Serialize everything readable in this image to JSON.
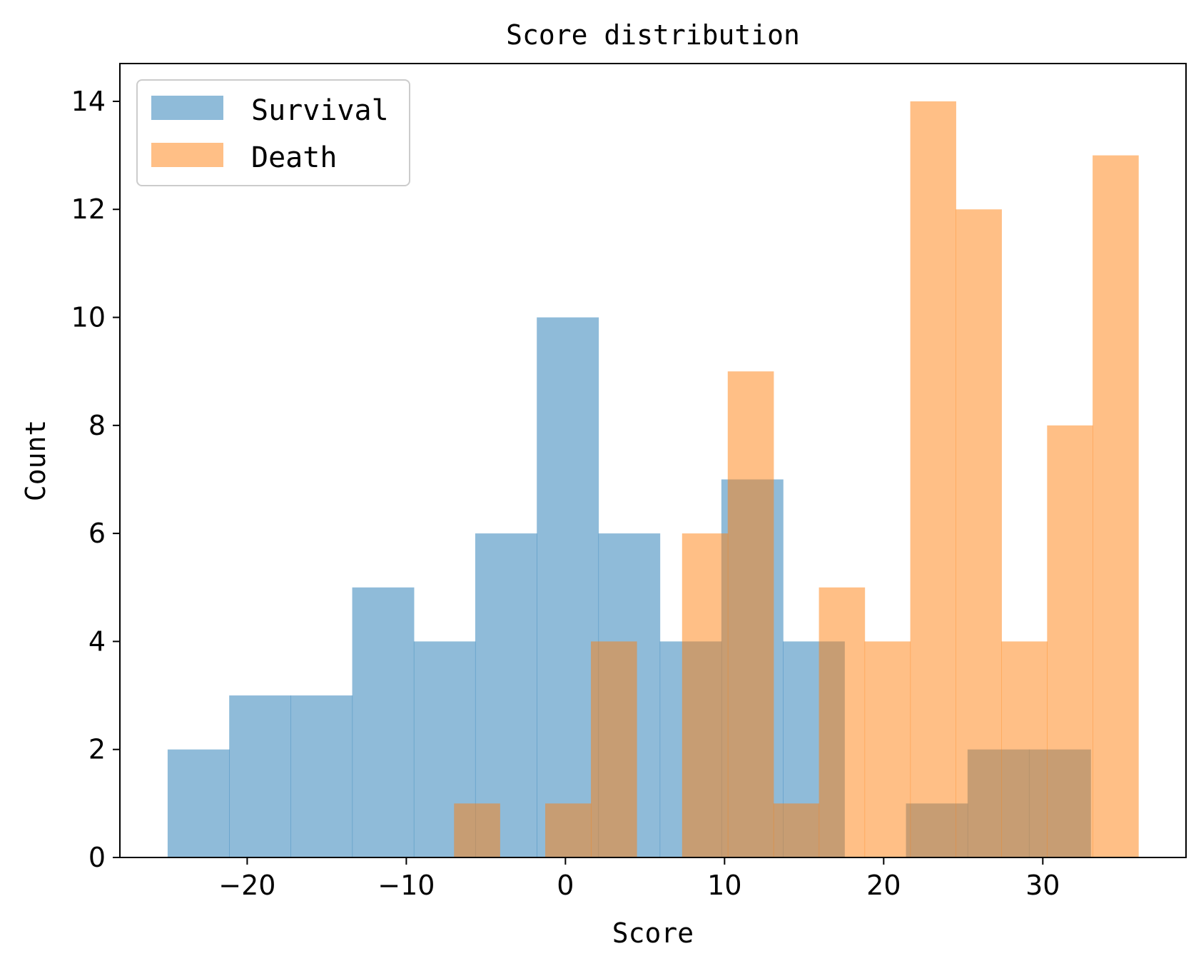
{
  "chart_data": {
    "type": "bar",
    "title": "Score distribution",
    "xlabel": "Score",
    "ylabel": "Count",
    "xlim": [
      -28,
      39
    ],
    "ylim": [
      0,
      14.7
    ],
    "xticks": [
      -20,
      -10,
      0,
      10,
      20,
      30
    ],
    "xtick_labels": [
      "−20",
      "−10",
      "0",
      "10",
      "20",
      "30"
    ],
    "yticks": [
      0,
      2,
      4,
      6,
      8,
      10,
      12,
      14
    ],
    "ytick_labels": [
      "0",
      "2",
      "4",
      "6",
      "8",
      "10",
      "12",
      "14"
    ],
    "grid": false,
    "legend_position": "top-left",
    "series": [
      {
        "name": "Survival",
        "color": "#1f77b4",
        "alpha": 0.5,
        "bin_edges": [
          -25.0,
          -21.13,
          -17.27,
          -13.4,
          -9.53,
          -5.67,
          -1.8,
          2.07,
          5.93,
          9.8,
          13.67,
          17.53,
          21.4,
          25.27,
          29.13,
          33.0
        ],
        "counts": [
          2,
          3,
          3,
          5,
          4,
          6,
          10,
          6,
          4,
          7,
          4,
          0,
          1,
          2,
          2
        ]
      },
      {
        "name": "Death",
        "color": "#ff7f0e",
        "alpha": 0.5,
        "bin_edges": [
          -7.0,
          -4.13,
          -1.27,
          1.6,
          4.47,
          7.33,
          10.2,
          13.07,
          15.93,
          18.8,
          21.67,
          24.53,
          27.4,
          30.27,
          33.13,
          36.0
        ],
        "counts": [
          1,
          0,
          1,
          4,
          0,
          6,
          9,
          1,
          5,
          4,
          14,
          12,
          4,
          8,
          13
        ]
      }
    ]
  }
}
